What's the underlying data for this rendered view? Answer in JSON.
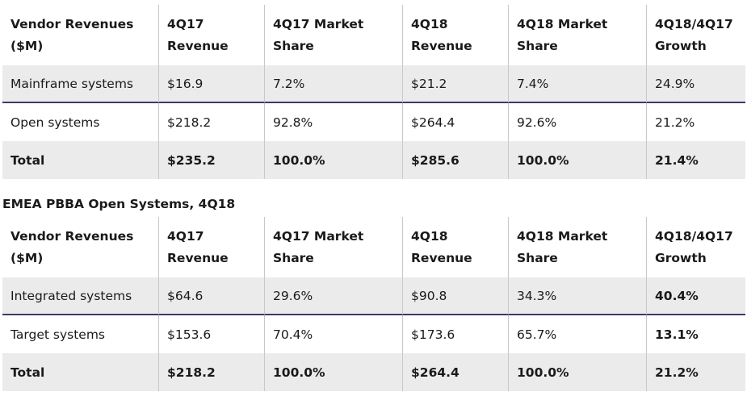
{
  "table1": {
    "headers": [
      [
        "Vendor Revenues",
        "($M)"
      ],
      [
        "4Q17",
        "Revenue"
      ],
      [
        "4Q17 Market",
        "Share"
      ],
      [
        "4Q18",
        "Revenue"
      ],
      [
        "4Q18 Market",
        "Share"
      ],
      [
        "4Q18/4Q17",
        "Growth"
      ]
    ],
    "rows": [
      [
        "Mainframe systems",
        "$16.9",
        "7.2%",
        "$21.2",
        "7.4%",
        "24.9%"
      ],
      [
        "Open systems",
        "$218.2",
        "92.8%",
        "$264.4",
        "92.6%",
        "21.2%"
      ],
      [
        "Total",
        "$235.2",
        "100.0%",
        "$285.6",
        "100.0%",
        "21.4%"
      ]
    ]
  },
  "table2": {
    "caption": "EMEA PBBA Open Systems, 4Q18",
    "headers": [
      [
        "Vendor Revenues",
        "($M)"
      ],
      [
        "4Q17",
        "Revenue"
      ],
      [
        "4Q17 Market",
        "Share"
      ],
      [
        "4Q18",
        "Revenue"
      ],
      [
        "4Q18 Market",
        "Share"
      ],
      [
        "4Q18/4Q17",
        "Growth"
      ]
    ],
    "rows": [
      [
        "Integrated systems",
        "$64.6",
        "29.6%",
        "$90.8",
        "34.3%",
        "40.4%"
      ],
      [
        "Target systems",
        "$153.6",
        "70.4%",
        "$173.6",
        "65.7%",
        "13.1%"
      ],
      [
        "Total",
        "$218.2",
        "100.0%",
        "$264.4",
        "100.0%",
        "21.2%"
      ]
    ]
  },
  "colors": {
    "shaded_row": "#ebebeb",
    "divider": "#3d3a6b",
    "column_rule": "#c8c8c8"
  }
}
